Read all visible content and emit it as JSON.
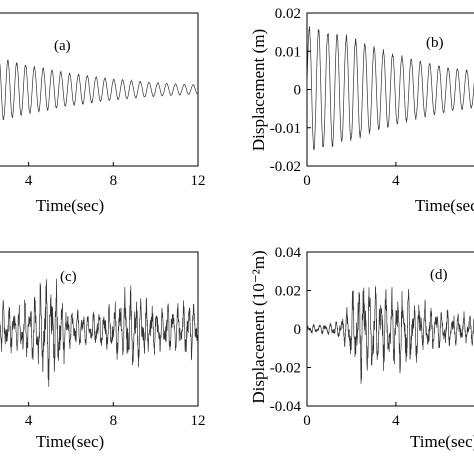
{
  "chart_data": [
    {
      "type": "line",
      "panel_label": "(a)",
      "xlabel": "Time(sec)",
      "ylabel": "",
      "xticks": [
        "4",
        "8",
        "12"
      ],
      "xtick_values": [
        4,
        8,
        12
      ],
      "yticks": [],
      "xlim": [
        2.6,
        12
      ],
      "ylim": [
        -0.02,
        0.02
      ],
      "series": [
        {
          "envelope": {
            "t": [
              2.6,
              4,
              6,
              8,
              10,
              12
            ],
            "amplitude": [
              0.0085,
              0.0065,
              0.0043,
              0.0028,
              0.0018,
              0.0012
            ]
          },
          "frequency_hz": 2.4
        }
      ]
    },
    {
      "type": "line",
      "panel_label": "(b)",
      "xlabel": "Time(sec",
      "ylabel": "Displacement (m)",
      "xticks": [
        "0",
        "4"
      ],
      "xtick_values": [
        0,
        4
      ],
      "yticks": [
        "0.02",
        "0.01",
        "0",
        "-0.01",
        "-0.02"
      ],
      "ytick_values": [
        0.02,
        0.01,
        0,
        -0.01,
        -0.02
      ],
      "xlim": [
        0,
        8.1
      ],
      "ylim": [
        -0.02,
        0.02
      ],
      "series": [
        {
          "envelope": {
            "t": [
              0,
              1,
              2,
              3,
              4,
              5,
              6,
              7,
              8.1
            ],
            "amplitude": [
              0.017,
              0.0155,
              0.014,
              0.0115,
              0.0095,
              0.0078,
              0.0064,
              0.0053,
              0.0045
            ]
          },
          "frequency_hz": 2.4
        }
      ]
    },
    {
      "type": "line",
      "panel_label": "(c)",
      "xlabel": "Time(sec)",
      "ylabel": "",
      "xticks": [
        "4",
        "8",
        "12"
      ],
      "xtick_values": [
        4,
        8,
        12
      ],
      "yticks": [],
      "xlim": [
        2.6,
        12
      ],
      "ylim": [
        -0.04,
        0.04
      ],
      "series": [
        {
          "envelope": {
            "t": [
              2.6,
              3.5,
              4.2,
              4.8,
              5.3,
              6,
              7,
              8,
              8.6,
              9.2,
              10,
              11,
              11.8,
              12
            ],
            "amplitude": [
              0.014,
              0.012,
              0.02,
              0.03,
              0.024,
              0.01,
              0.008,
              0.014,
              0.022,
              0.018,
              0.012,
              0.013,
              0.016,
              0.006
            ]
          },
          "frequency_hz": 4.0
        }
      ]
    },
    {
      "type": "line",
      "panel_label": "(d)",
      "xlabel": "Time(sec)",
      "ylabel": "Displacement (10⁻²m)",
      "xticks": [
        "0",
        "4"
      ],
      "xtick_values": [
        0,
        4
      ],
      "yticks": [
        "0.04",
        "0.02",
        "0",
        "-0.02",
        "-0.04"
      ],
      "ytick_values": [
        0.04,
        0.02,
        0,
        -0.02,
        -0.04
      ],
      "xlim": [
        0,
        8.1
      ],
      "ylim": [
        -0.04,
        0.04
      ],
      "series": [
        {
          "envelope": {
            "t": [
              0,
              1,
              1.5,
              2,
              2.5,
              3,
              3.5,
              4,
              4.5,
              5,
              5.5,
              6,
              7,
              8.1
            ],
            "amplitude": [
              0.002,
              0.003,
              0.005,
              0.018,
              0.03,
              0.024,
              0.019,
              0.02,
              0.022,
              0.016,
              0.012,
              0.01,
              0.009,
              0.008
            ]
          },
          "frequency_hz": 4.0
        }
      ]
    }
  ]
}
